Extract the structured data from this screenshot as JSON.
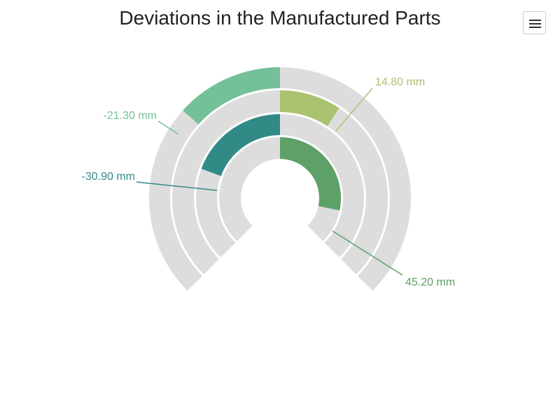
{
  "chart_data": {
    "type": "radial-bar",
    "title": "Deviations in the Manufactured Parts",
    "axis_range_deg": [
      -135,
      135
    ],
    "value_range": [
      -60,
      60
    ],
    "track_color": "#dddddd",
    "series": [
      {
        "value": 45.2,
        "label": "45.20 mm",
        "color": "#5da168"
      },
      {
        "value": -30.9,
        "label": "-30.90 mm",
        "color": "#328a87"
      },
      {
        "value": 14.8,
        "label": "14.80 mm",
        "color": "#abc270"
      },
      {
        "value": -21.3,
        "label": "-21.30 mm",
        "color": "#74c098"
      }
    ]
  },
  "toolbar": {
    "menu_icon": "hamburger-menu-icon"
  }
}
